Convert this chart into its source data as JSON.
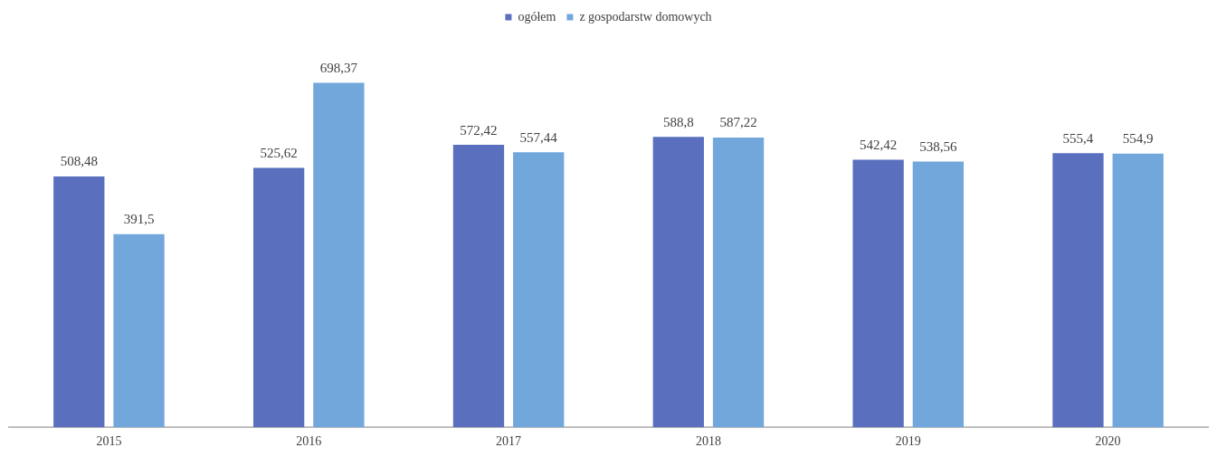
{
  "chart_data": {
    "type": "bar",
    "categories": [
      "2015",
      "2016",
      "2017",
      "2018",
      "2019",
      "2020"
    ],
    "series": [
      {
        "name": "ogółem",
        "color": "#5a6fbe",
        "values": [
          508.48,
          525.62,
          572.42,
          588.8,
          542.42,
          555.4
        ],
        "value_labels": [
          "508,48",
          "525,62",
          "572,42",
          "588,8",
          "542,42",
          "555,4"
        ]
      },
      {
        "name": "z gospodarstw domowych",
        "color": "#72a7dc",
        "values": [
          391.5,
          698.37,
          557.44,
          587.22,
          538.56,
          554.9
        ],
        "value_labels": [
          "391,5",
          "698,37",
          "557,44",
          "587,22",
          "538,56",
          "554,9"
        ]
      }
    ],
    "grid": false,
    "legend": "top"
  }
}
